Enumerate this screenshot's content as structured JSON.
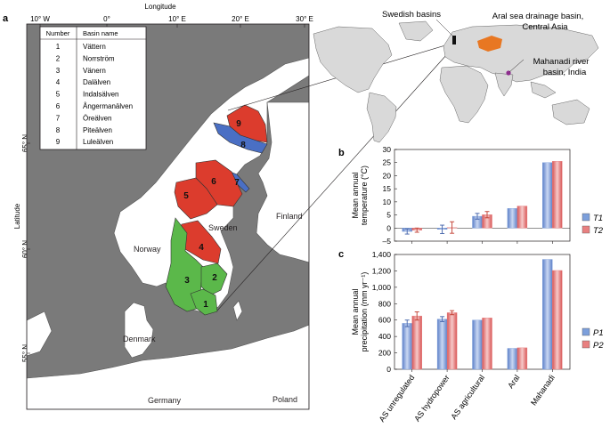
{
  "panel_labels": {
    "a": "a",
    "b": "b",
    "c": "c"
  },
  "map": {
    "axis_title_x": "Longitude",
    "axis_title_y": "Latitude",
    "lon_ticks": [
      "10° W",
      "0°",
      "10° E",
      "20° E",
      "30° E"
    ],
    "lat_ticks": [
      "65° N",
      "60° N",
      "55° N"
    ],
    "place_labels": [
      "Finland",
      "Sweden",
      "Norway",
      "Denmark",
      "Germany",
      "Poland"
    ],
    "basin_numbers": [
      "1",
      "2",
      "3",
      "4",
      "5",
      "6",
      "7",
      "8",
      "9"
    ],
    "colors": {
      "sea": "#7a7a7a",
      "land": "#ffffff",
      "green": "#5bb84a",
      "red": "#dc3c2d",
      "blue": "#4a6fc4"
    },
    "basin_table": {
      "headers": [
        "Number",
        "Basin name"
      ],
      "rows": [
        [
          "1",
          "Vättern"
        ],
        [
          "2",
          "Norrström"
        ],
        [
          "3",
          "Vänern"
        ],
        [
          "4",
          "Dalälven"
        ],
        [
          "5",
          "Indalsälven"
        ],
        [
          "6",
          "Ångermanälven"
        ],
        [
          "7",
          "Öreälven"
        ],
        [
          "8",
          "Piteälven"
        ],
        [
          "9",
          "Luleälven"
        ]
      ]
    }
  },
  "world_map": {
    "labels": [
      "Swedish basins",
      "Aral sea drainage basin, Central Asia",
      "Mahanadi river basin, India"
    ],
    "colors": {
      "land": "#d9d9d9",
      "aral": "#e87722",
      "mahanadi": "#8e2c8e"
    }
  },
  "chart_data": [
    {
      "type": "bar",
      "panel": "b",
      "ylabel": "Mean annual temperature (°C)",
      "ylim": [
        -5,
        30
      ],
      "yticks": [
        "30",
        "25",
        "20",
        "15",
        "10",
        "5",
        "0",
        "–5"
      ],
      "categories": [
        "AS unregulated",
        "AS hydropower",
        "AS agricultural",
        "Aral",
        "Mahanadi"
      ],
      "series": [
        {
          "name": "T1",
          "color": "#7c9fdb",
          "values": [
            -1.3,
            -0.5,
            4.5,
            7.5,
            25.0
          ],
          "errors": [
            1.0,
            1.6,
            1.1,
            0,
            0
          ]
        },
        {
          "name": "T2",
          "color": "#e88080",
          "values": [
            -0.8,
            0.2,
            5.1,
            8.4,
            25.5
          ],
          "errors": [
            0.8,
            2.2,
            1.2,
            0,
            0
          ]
        }
      ]
    },
    {
      "type": "bar",
      "panel": "c",
      "ylabel": "Mean annual precipitation (mm yr⁻¹)",
      "ylim": [
        0,
        1400
      ],
      "yticks": [
        "1,400",
        "1,200",
        "1,000",
        "800",
        "600",
        "400",
        "200",
        "0"
      ],
      "categories": [
        "AS unregulated",
        "AS hydropower",
        "AS agricultural",
        "Aral",
        "Mahanadi"
      ],
      "series": [
        {
          "name": "P1",
          "color": "#7c9fdb",
          "values": [
            560,
            612,
            600,
            255,
            1340
          ],
          "errors": [
            40,
            30,
            0,
            0,
            0
          ]
        },
        {
          "name": "P2",
          "color": "#e88080",
          "values": [
            650,
            690,
            627,
            262,
            1205
          ],
          "errors": [
            50,
            25,
            0,
            0,
            0
          ]
        }
      ]
    }
  ]
}
